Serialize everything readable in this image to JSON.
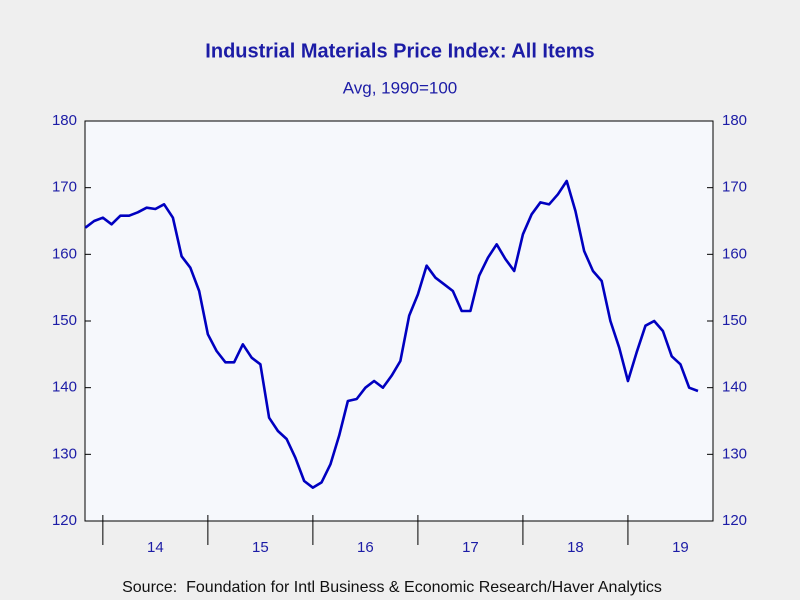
{
  "chart_data": {
    "type": "line",
    "title": "Industrial Materials Price Index: All Items",
    "subtitle": "Avg, 1990=100",
    "source": "Source:  Foundation for Intl Business & Economic Research/Haver Analytics",
    "categories": [
      "14",
      "15",
      "16",
      "17",
      "18",
      "19"
    ],
    "xlim": [
      2013.83,
      2019.81
    ],
    "xticks": [
      2014,
      2015,
      2016,
      2017,
      2018,
      2019
    ],
    "ylim": [
      120,
      180
    ],
    "yticks": [
      120,
      130,
      140,
      150,
      160,
      170,
      180
    ],
    "y2lim": [
      120,
      180
    ],
    "y2ticks": [
      120,
      130,
      140,
      150,
      160,
      170,
      180
    ],
    "grid": false,
    "series": [
      {
        "color": "#0000c0",
        "x": [
          2013.833,
          2013.917,
          2014.0,
          2014.083,
          2014.167,
          2014.25,
          2014.333,
          2014.417,
          2014.5,
          2014.583,
          2014.667,
          2014.75,
          2014.833,
          2014.917,
          2015.0,
          2015.083,
          2015.167,
          2015.25,
          2015.333,
          2015.417,
          2015.5,
          2015.583,
          2015.667,
          2015.75,
          2015.833,
          2015.917,
          2016.0,
          2016.083,
          2016.167,
          2016.25,
          2016.333,
          2016.417,
          2016.5,
          2016.583,
          2016.667,
          2016.75,
          2016.833,
          2016.917,
          2017.0,
          2017.083,
          2017.167,
          2017.25,
          2017.333,
          2017.417,
          2017.5,
          2017.583,
          2017.667,
          2017.75,
          2017.833,
          2017.917,
          2018.0,
          2018.083,
          2018.167,
          2018.25,
          2018.333,
          2018.417,
          2018.5,
          2018.583,
          2018.667,
          2018.75,
          2018.833,
          2018.917,
          2019.0,
          2019.083,
          2019.167,
          2019.25,
          2019.333,
          2019.417,
          2019.5,
          2019.583,
          2019.667
        ],
        "values": [
          164,
          165,
          165.5,
          164.5,
          165.8,
          165.8,
          166.3,
          167,
          166.8,
          167.5,
          165.5,
          159.7,
          158,
          154.5,
          148,
          145.5,
          143.8,
          143.8,
          146.5,
          144.5,
          143.5,
          135.5,
          133.5,
          132.3,
          129.5,
          126,
          125,
          125.8,
          128.5,
          132.8,
          138,
          138.3,
          140,
          141,
          140,
          141.8,
          144,
          150.8,
          154,
          158.3,
          156.5,
          155.5,
          154.5,
          151.5,
          151.5,
          156.8,
          159.5,
          161.5,
          159.3,
          157.5,
          163,
          166,
          167.8,
          167.5,
          169,
          171,
          166.5,
          160.5,
          157.5,
          156,
          150,
          146,
          141,
          145.3,
          149.3,
          150,
          148.5,
          144.7,
          143.5,
          140,
          139.5
        ]
      }
    ]
  }
}
